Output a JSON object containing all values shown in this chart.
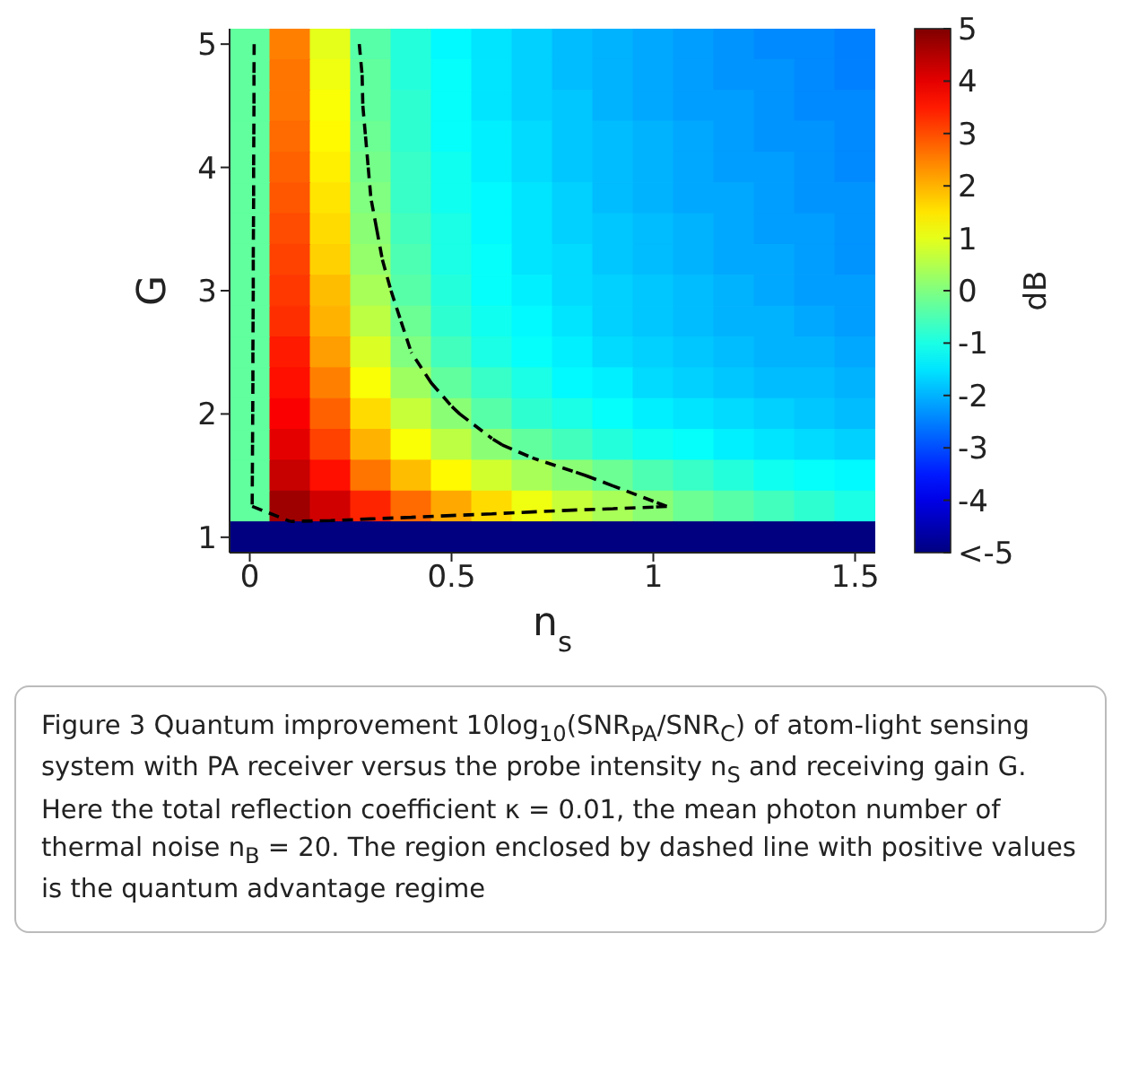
{
  "chart_data": {
    "type": "heatmap",
    "xlabel": "n$_{s}$",
    "ylabel": "G",
    "clabel": "dB",
    "categories": [
      "0",
      null,
      null,
      null,
      null,
      "0.5",
      null,
      null,
      null,
      null,
      "1",
      null,
      null,
      null,
      null,
      "1.5"
    ],
    "y_categories": [
      "5",
      null,
      null,
      null,
      "4",
      null,
      null,
      null,
      "3",
      null,
      null,
      null,
      "2",
      null,
      null,
      null,
      "1"
    ],
    "cells": [
      [
        -0.3,
        2.5,
        1.0,
        -0.4,
        -0.9,
        -1.3,
        -1.5,
        -1.7,
        -1.9,
        -2.0,
        -2.1,
        -2.2,
        -2.3,
        -2.4,
        -2.4,
        -2.5
      ],
      [
        -0.3,
        2.6,
        1.1,
        -0.3,
        -0.9,
        -1.2,
        -1.5,
        -1.7,
        -1.9,
        -2.0,
        -2.1,
        -2.2,
        -2.3,
        -2.3,
        -2.4,
        -2.5
      ],
      [
        -0.3,
        2.6,
        1.2,
        -0.3,
        -0.8,
        -1.2,
        -1.5,
        -1.7,
        -1.8,
        -2.0,
        -2.1,
        -2.2,
        -2.2,
        -2.3,
        -2.4,
        -2.4
      ],
      [
        -0.3,
        2.7,
        1.3,
        -0.2,
        -0.8,
        -1.2,
        -1.4,
        -1.6,
        -1.8,
        -1.9,
        -2.0,
        -2.1,
        -2.2,
        -2.3,
        -2.3,
        -2.4
      ],
      [
        -0.3,
        2.8,
        1.4,
        -0.1,
        -0.7,
        -1.1,
        -1.4,
        -1.6,
        -1.8,
        -1.9,
        -2.0,
        -2.1,
        -2.2,
        -2.2,
        -2.3,
        -2.4
      ],
      [
        -0.3,
        2.9,
        1.5,
        0.0,
        -0.7,
        -1.1,
        -1.3,
        -1.5,
        -1.7,
        -1.9,
        -2.0,
        -2.1,
        -2.1,
        -2.2,
        -2.3,
        -2.3
      ],
      [
        -0.3,
        3.0,
        1.6,
        0.1,
        -0.6,
        -1.0,
        -1.3,
        -1.5,
        -1.7,
        -1.8,
        -1.9,
        -2.0,
        -2.1,
        -2.2,
        -2.2,
        -2.3
      ],
      [
        -0.3,
        3.1,
        1.7,
        0.2,
        -0.5,
        -1.0,
        -1.2,
        -1.5,
        -1.6,
        -1.8,
        -1.9,
        -2.0,
        -2.1,
        -2.1,
        -2.2,
        -2.3
      ],
      [
        -0.3,
        3.2,
        1.9,
        0.4,
        -0.4,
        -0.9,
        -1.2,
        -1.4,
        -1.6,
        -1.7,
        -1.8,
        -1.9,
        -2.0,
        -2.1,
        -2.2,
        -2.2
      ],
      [
        -0.3,
        3.3,
        2.0,
        0.6,
        -0.2,
        -0.8,
        -1.1,
        -1.3,
        -1.5,
        -1.7,
        -1.8,
        -1.9,
        -2.0,
        -2.0,
        -2.1,
        -2.2
      ],
      [
        -0.3,
        3.5,
        2.2,
        0.9,
        0.0,
        -0.6,
        -1.0,
        -1.2,
        -1.4,
        -1.6,
        -1.7,
        -1.8,
        -1.9,
        -2.0,
        -2.0,
        -2.1
      ],
      [
        -0.3,
        3.6,
        2.5,
        1.2,
        0.3,
        -0.3,
        -0.7,
        -1.0,
        -1.3,
        -1.4,
        -1.6,
        -1.7,
        -1.8,
        -1.9,
        -1.9,
        -2.0
      ],
      [
        -0.3,
        3.8,
        2.8,
        1.6,
        0.7,
        0.1,
        -0.4,
        -0.8,
        -1.0,
        -1.2,
        -1.4,
        -1.5,
        -1.6,
        -1.7,
        -1.8,
        -1.9
      ],
      [
        -0.3,
        4.0,
        3.1,
        2.0,
        1.2,
        0.6,
        0.1,
        -0.3,
        -0.6,
        -0.9,
        -1.1,
        -1.2,
        -1.4,
        -1.5,
        -1.6,
        -1.7
      ],
      [
        -0.3,
        4.3,
        3.6,
        2.6,
        1.9,
        1.3,
        0.8,
        0.4,
        0.1,
        -0.2,
        -0.5,
        -0.7,
        -0.9,
        -1.1,
        -1.2,
        -1.3
      ],
      [
        -0.3,
        4.7,
        4.2,
        3.4,
        2.7,
        2.1,
        1.6,
        1.1,
        0.7,
        0.4,
        0.1,
        -0.2,
        -0.4,
        -0.6,
        -0.8,
        -1.0
      ],
      [
        -5,
        -5,
        -5,
        -5,
        -5,
        -5,
        -5,
        -5,
        -5,
        -5,
        -5,
        -5,
        -5,
        -5,
        -5,
        -5
      ]
    ],
    "clim": [
      -5,
      5
    ],
    "cticks": [
      {
        "value": -5,
        "label": "<-5"
      },
      -4,
      -3,
      -2,
      -1,
      0,
      1,
      2,
      3,
      4,
      5
    ],
    "annotations": [
      "Figure 3 Quantum improvement 10log$_{10}$(SNR$_{PA}$/SNR$_{C}$) of atom-light sensing system with PA receiver versus the probe intensity n$_{S}$ and receiving gain G. Here the total reflection coefficient κ = 0.01, the mean photon number of thermal noise n$_{B}$ = 20. The region enclosed by dashed line with positive values is the quantum advantage regime"
    ]
  }
}
